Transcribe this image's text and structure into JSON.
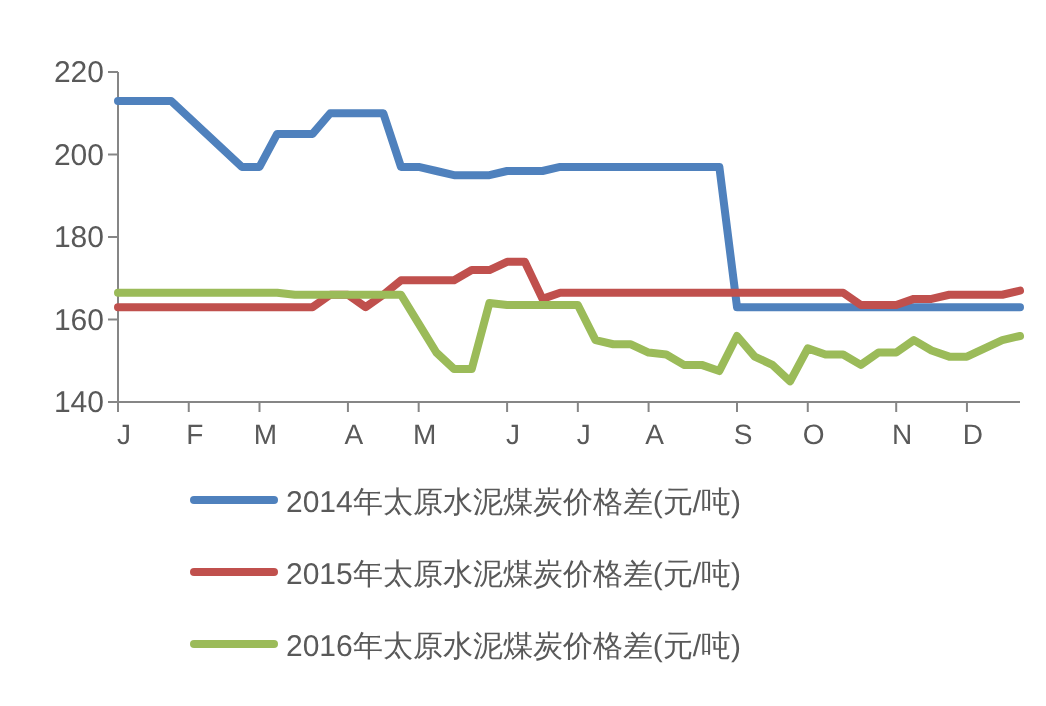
{
  "chart_data": {
    "type": "line",
    "categories": [
      "J",
      null,
      null,
      null,
      "F",
      null,
      null,
      null,
      "M",
      null,
      null,
      null,
      null,
      "A",
      null,
      null,
      null,
      "M",
      null,
      null,
      null,
      null,
      "J",
      null,
      null,
      null,
      "J",
      null,
      null,
      null,
      "A",
      null,
      null,
      null,
      null,
      "S",
      null,
      null,
      null,
      "O",
      null,
      null,
      null,
      null,
      "N",
      null,
      null,
      null,
      "D",
      null,
      null,
      null
    ],
    "series": [
      {
        "name": "2014年太原水泥煤炭价格差(元/吨)",
        "color": "#4f81bd",
        "values": [
          213,
          213,
          213,
          213,
          209,
          205,
          201,
          197,
          197,
          205,
          205,
          205,
          210,
          210,
          210,
          210,
          197,
          197,
          196,
          195,
          195,
          195,
          196,
          196,
          196,
          197,
          197,
          197,
          197,
          197,
          197,
          197,
          197,
          197,
          197,
          163,
          163,
          163,
          163,
          163,
          163,
          163,
          163,
          163,
          163,
          163,
          163,
          163,
          163,
          163,
          163,
          163
        ]
      },
      {
        "name": "2015年太原水泥煤炭价格差(元/吨)",
        "color": "#c0504d",
        "values": [
          163,
          163,
          163,
          163,
          163,
          163,
          163,
          163,
          163,
          163,
          163,
          163,
          166,
          166,
          163,
          166,
          169.5,
          169.5,
          169.5,
          169.5,
          172,
          172,
          174,
          174,
          165,
          166.5,
          166.5,
          166.5,
          166.5,
          166.5,
          166.5,
          166.5,
          166.5,
          166.5,
          166.5,
          166.5,
          166.5,
          166.5,
          166.5,
          166.5,
          166.5,
          166.5,
          163.5,
          163.5,
          163.5,
          165,
          165,
          166,
          166,
          166,
          166,
          167
        ]
      },
      {
        "name": "2016年太原水泥煤炭价格差(元/吨)",
        "color": "#9bbb59",
        "values": [
          166.5,
          166.5,
          166.5,
          166.5,
          166.5,
          166.5,
          166.5,
          166.5,
          166.5,
          166.5,
          166,
          166,
          166,
          166,
          166,
          166,
          166,
          159,
          152,
          148,
          148,
          164,
          163.5,
          163.5,
          163.5,
          163.5,
          163.5,
          155,
          154,
          154,
          152,
          151.5,
          149,
          149,
          147.5,
          156,
          151,
          149,
          145,
          153,
          151.5,
          151.5,
          149,
          152,
          152,
          155,
          152.5,
          151,
          151,
          153,
          155,
          156
        ]
      }
    ],
    "ylim": [
      140,
      220
    ],
    "yticks": [
      140,
      160,
      180,
      200,
      220
    ],
    "grid": false,
    "legend": "bottom"
  }
}
